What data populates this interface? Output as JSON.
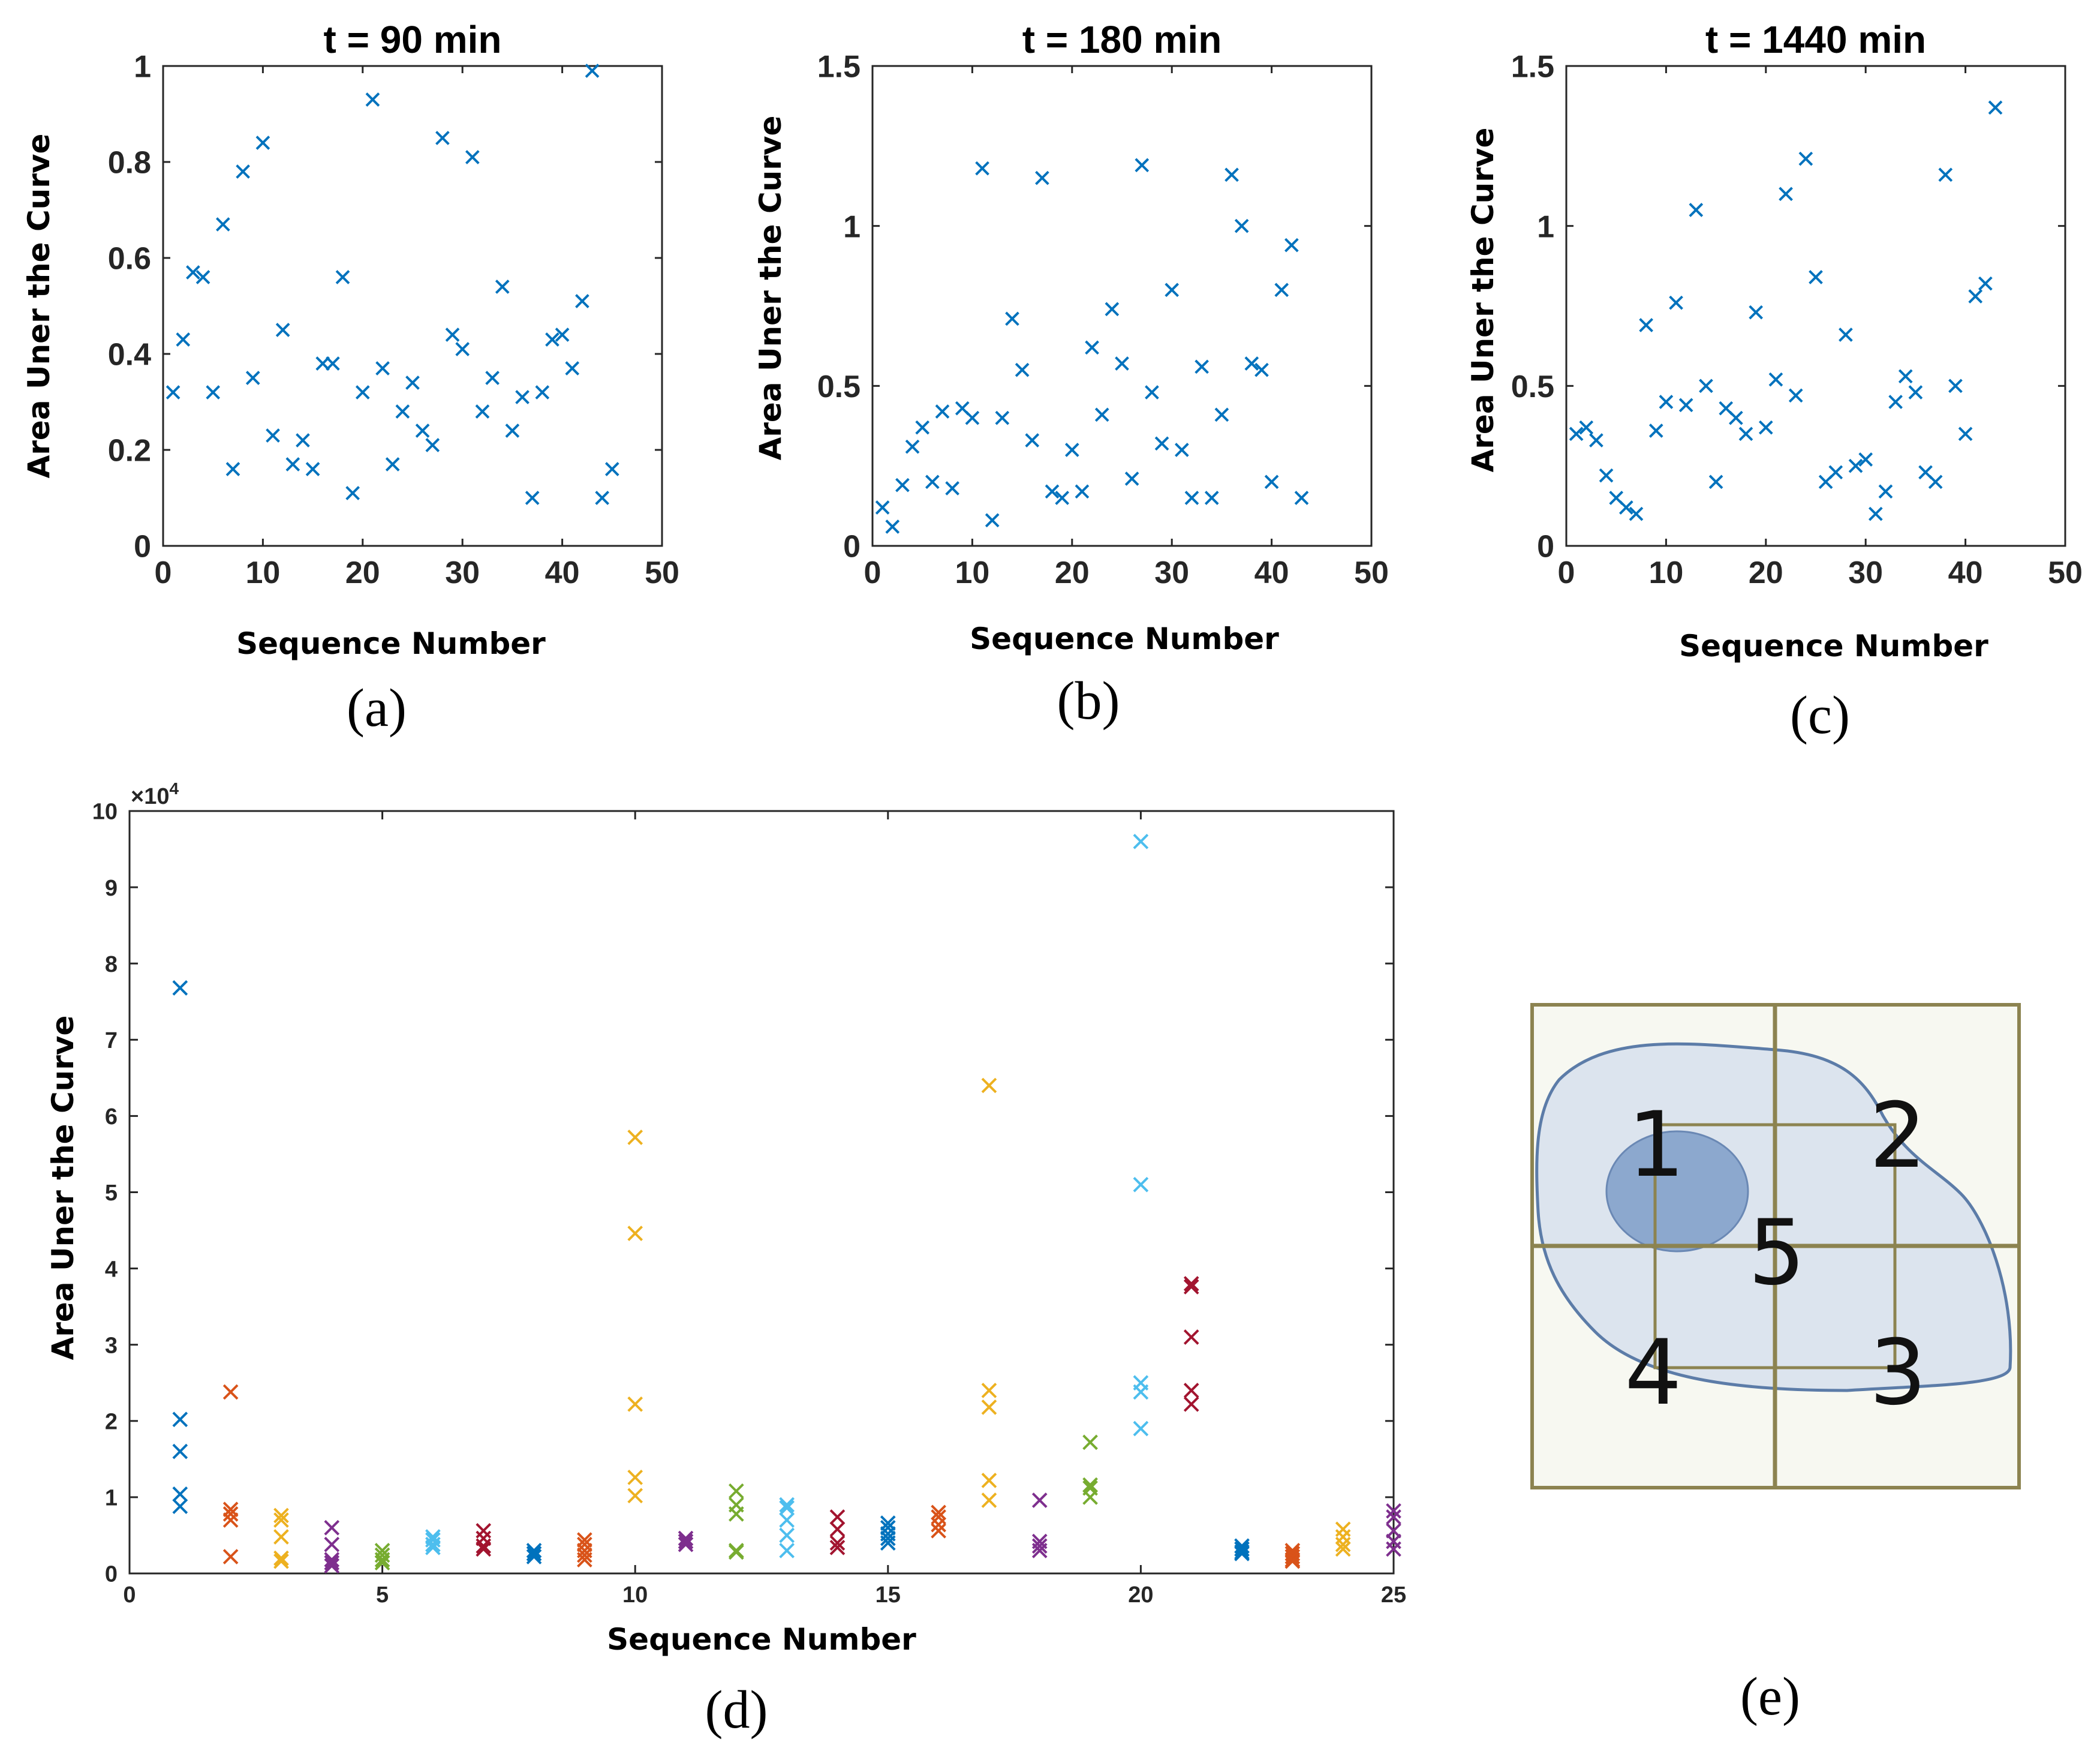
{
  "chart_data": [
    {
      "panel": "(a)",
      "type": "scatter",
      "title": "t = 90 min",
      "xlabel": "Sequence Number",
      "ylabel": "Area Uner the Curve",
      "xlim": [
        0,
        50
      ],
      "ylim": [
        0,
        1
      ],
      "xticks": [
        "0",
        "10",
        "20",
        "30",
        "40",
        "50"
      ],
      "yticks": [
        "0",
        "0.2",
        "0.4",
        "0.6",
        "0.8",
        "1"
      ],
      "marker": "x",
      "color": "#0072BD",
      "series": [
        {
          "name": "",
          "x": [
            1,
            2,
            3,
            4,
            5,
            6,
            7,
            8,
            9,
            10,
            11,
            12,
            13,
            14,
            15,
            16,
            17,
            18,
            19,
            20,
            21,
            22,
            23,
            24,
            25,
            26,
            27,
            28,
            29,
            30,
            31,
            32,
            33,
            34,
            35,
            36,
            37,
            38,
            39,
            40,
            41,
            42,
            43,
            44,
            45
          ],
          "y": [
            0.32,
            0.43,
            0.57,
            0.56,
            0.32,
            0.67,
            0.16,
            0.78,
            0.35,
            0.84,
            0.23,
            0.45,
            0.17,
            0.22,
            0.16,
            0.38,
            0.38,
            0.56,
            0.11,
            0.32,
            0.93,
            0.37,
            0.17,
            0.28,
            0.34,
            0.24,
            0.21,
            0.85,
            0.44,
            0.41,
            0.81,
            0.28,
            0.35,
            0.54,
            0.24,
            0.31,
            0.1,
            0.32,
            0.43,
            0.44,
            0.37,
            0.51,
            0.99,
            0.1,
            0.16
          ]
        }
      ]
    },
    {
      "panel": "(b)",
      "type": "scatter",
      "title": "t = 180 min",
      "xlabel": "Sequence Number",
      "ylabel": "Area Uner the Curve",
      "xlim": [
        0,
        50
      ],
      "ylim": [
        0,
        1.5
      ],
      "xticks": [
        "0",
        "10",
        "20",
        "30",
        "40",
        "50"
      ],
      "yticks": [
        "0",
        "0.5",
        "1",
        "1.5"
      ],
      "marker": "x",
      "color": "#0072BD",
      "series": [
        {
          "name": "",
          "x": [
            1,
            2,
            3,
            4,
            5,
            6,
            7,
            8,
            9,
            10,
            11,
            12,
            13,
            14,
            15,
            16,
            17,
            18,
            19,
            20,
            21,
            22,
            23,
            24,
            25,
            26,
            27,
            28,
            29,
            30,
            31,
            32,
            33,
            34,
            35,
            36,
            37,
            38,
            39,
            40,
            41,
            42,
            43
          ],
          "y": [
            0.12,
            0.06,
            0.19,
            0.31,
            0.37,
            0.2,
            0.42,
            0.18,
            0.43,
            0.4,
            1.18,
            0.08,
            0.4,
            0.71,
            0.55,
            0.33,
            1.15,
            0.17,
            0.15,
            0.3,
            0.17,
            0.62,
            0.41,
            0.74,
            0.57,
            0.21,
            1.19,
            0.48,
            0.32,
            0.8,
            0.3,
            0.15,
            0.56,
            0.15,
            0.41,
            1.16,
            1.0,
            0.57,
            0.55,
            0.2,
            0.8,
            0.94,
            0.15
          ]
        }
      ]
    },
    {
      "panel": "(c)",
      "type": "scatter",
      "title": "t = 1440 min",
      "xlabel": "Sequence Number",
      "ylabel": "Area Uner the Curve",
      "xlim": [
        0,
        50
      ],
      "ylim": [
        0,
        1.5
      ],
      "xticks": [
        "0",
        "10",
        "20",
        "30",
        "40",
        "50"
      ],
      "yticks": [
        "0",
        "0.5",
        "1",
        "1.5"
      ],
      "marker": "x",
      "color": "#0072BD",
      "series": [
        {
          "name": "",
          "x": [
            1,
            2,
            3,
            4,
            5,
            6,
            7,
            8,
            9,
            10,
            11,
            12,
            13,
            14,
            15,
            16,
            17,
            18,
            19,
            20,
            21,
            22,
            23,
            24,
            25,
            26,
            27,
            28,
            29,
            30,
            31,
            32,
            33,
            34,
            35,
            36,
            37,
            38,
            39,
            40,
            41,
            42,
            43
          ],
          "y": [
            0.35,
            0.37,
            0.33,
            0.22,
            0.15,
            0.12,
            0.1,
            0.69,
            0.36,
            0.45,
            0.76,
            0.44,
            1.05,
            0.5,
            0.2,
            0.43,
            0.4,
            0.35,
            0.73,
            0.37,
            0.52,
            1.1,
            0.47,
            1.21,
            0.84,
            0.2,
            0.23,
            0.66,
            0.25,
            0.27,
            0.1,
            0.17,
            0.45,
            0.53,
            0.48,
            0.23,
            0.2,
            1.16,
            0.5,
            0.35,
            0.78,
            0.82,
            1.37
          ]
        }
      ]
    },
    {
      "panel": "(d)",
      "type": "scatter",
      "title": "",
      "xlabel": "Sequence Number",
      "ylabel": "Area Uner the Curve",
      "exponent_label": "×10",
      "exponent_power": "4",
      "xlim": [
        0,
        25
      ],
      "ylim": [
        0,
        10
      ],
      "xticks": [
        "0",
        "5",
        "10",
        "15",
        "20",
        "25"
      ],
      "yticks": [
        "0",
        "1",
        "2",
        "3",
        "4",
        "5",
        "6",
        "7",
        "8",
        "9",
        "10"
      ],
      "marker": "x",
      "series": [
        {
          "x": 1,
          "color": "#0072BD",
          "values": [
            7.68,
            2.02,
            1.6,
            1.04,
            0.88
          ]
        },
        {
          "x": 2,
          "color": "#D95319",
          "values": [
            2.38,
            0.84,
            0.78,
            0.7,
            0.22
          ]
        },
        {
          "x": 3,
          "color": "#EDB120",
          "values": [
            0.76,
            0.7,
            0.48,
            0.2,
            0.16
          ]
        },
        {
          "x": 4,
          "color": "#7E2F8E",
          "values": [
            0.6,
            0.38,
            0.18,
            0.14,
            0.1
          ]
        },
        {
          "x": 5,
          "color": "#77AC30",
          "values": [
            0.3,
            0.24,
            0.18,
            0.14
          ]
        },
        {
          "x": 6,
          "color": "#4DBEEE",
          "values": [
            0.48,
            0.44,
            0.38,
            0.34
          ]
        },
        {
          "x": 7,
          "color": "#A2142F",
          "values": [
            0.56,
            0.46,
            0.36,
            0.32
          ]
        },
        {
          "x": 8,
          "color": "#0072BD",
          "values": [
            0.3,
            0.26,
            0.22
          ]
        },
        {
          "x": 9,
          "color": "#D95319",
          "values": [
            0.44,
            0.38,
            0.3,
            0.24,
            0.18
          ]
        },
        {
          "x": 10,
          "color": "#EDB120",
          "values": [
            5.72,
            4.46,
            2.22,
            1.26,
            1.02
          ]
        },
        {
          "x": 11,
          "color": "#7E2F8E",
          "values": [
            0.46,
            0.42,
            0.38
          ]
        },
        {
          "x": 12,
          "color": "#77AC30",
          "values": [
            1.08,
            0.9,
            0.78,
            0.3,
            0.28
          ]
        },
        {
          "x": 13,
          "color": "#4DBEEE",
          "values": [
            0.9,
            0.86,
            0.7,
            0.5,
            0.3
          ]
        },
        {
          "x": 14,
          "color": "#A2142F",
          "values": [
            0.74,
            0.58,
            0.4,
            0.34
          ]
        },
        {
          "x": 15,
          "color": "#0072BD",
          "values": [
            0.66,
            0.6,
            0.52,
            0.46,
            0.4
          ]
        },
        {
          "x": 16,
          "color": "#D95319",
          "values": [
            0.8,
            0.74,
            0.64,
            0.56
          ]
        },
        {
          "x": 17,
          "color": "#EDB120",
          "values": [
            6.4,
            2.4,
            2.18,
            1.22,
            0.96
          ]
        },
        {
          "x": 18,
          "color": "#7E2F8E",
          "values": [
            0.96,
            0.42,
            0.36,
            0.3
          ]
        },
        {
          "x": 19,
          "color": "#77AC30",
          "values": [
            1.72,
            1.16,
            1.12,
            1.0
          ]
        },
        {
          "x": 20,
          "color": "#4DBEEE",
          "values": [
            9.6,
            5.1,
            2.5,
            2.38,
            1.9
          ]
        },
        {
          "x": 21,
          "color": "#A2142F",
          "values": [
            3.8,
            3.76,
            3.1,
            2.4,
            2.22
          ]
        },
        {
          "x": 22,
          "color": "#0072BD",
          "values": [
            0.36,
            0.32,
            0.28,
            0.26
          ]
        },
        {
          "x": 23,
          "color": "#D95319",
          "values": [
            0.3,
            0.26,
            0.22,
            0.18,
            0.16
          ]
        },
        {
          "x": 24,
          "color": "#EDB120",
          "values": [
            0.58,
            0.48,
            0.38,
            0.32
          ]
        },
        {
          "x": 25,
          "color": "#7E2F8E",
          "values": [
            0.82,
            0.74,
            0.56,
            0.42,
            0.32
          ]
        }
      ]
    }
  ],
  "panel_labels": {
    "a": "(a)",
    "b": "(b)",
    "c": "(c)",
    "d": "(d)",
    "e": "(e)"
  },
  "diagram_e": {
    "region_labels": [
      "1",
      "2",
      "3",
      "4",
      "5"
    ],
    "colors": {
      "background": "#F7F8F1",
      "grid": "#8C8350",
      "cell_fill": "#DCE4EE",
      "cell_stroke": "#5C7CA8",
      "nucleus": "#7E9EC8"
    }
  }
}
